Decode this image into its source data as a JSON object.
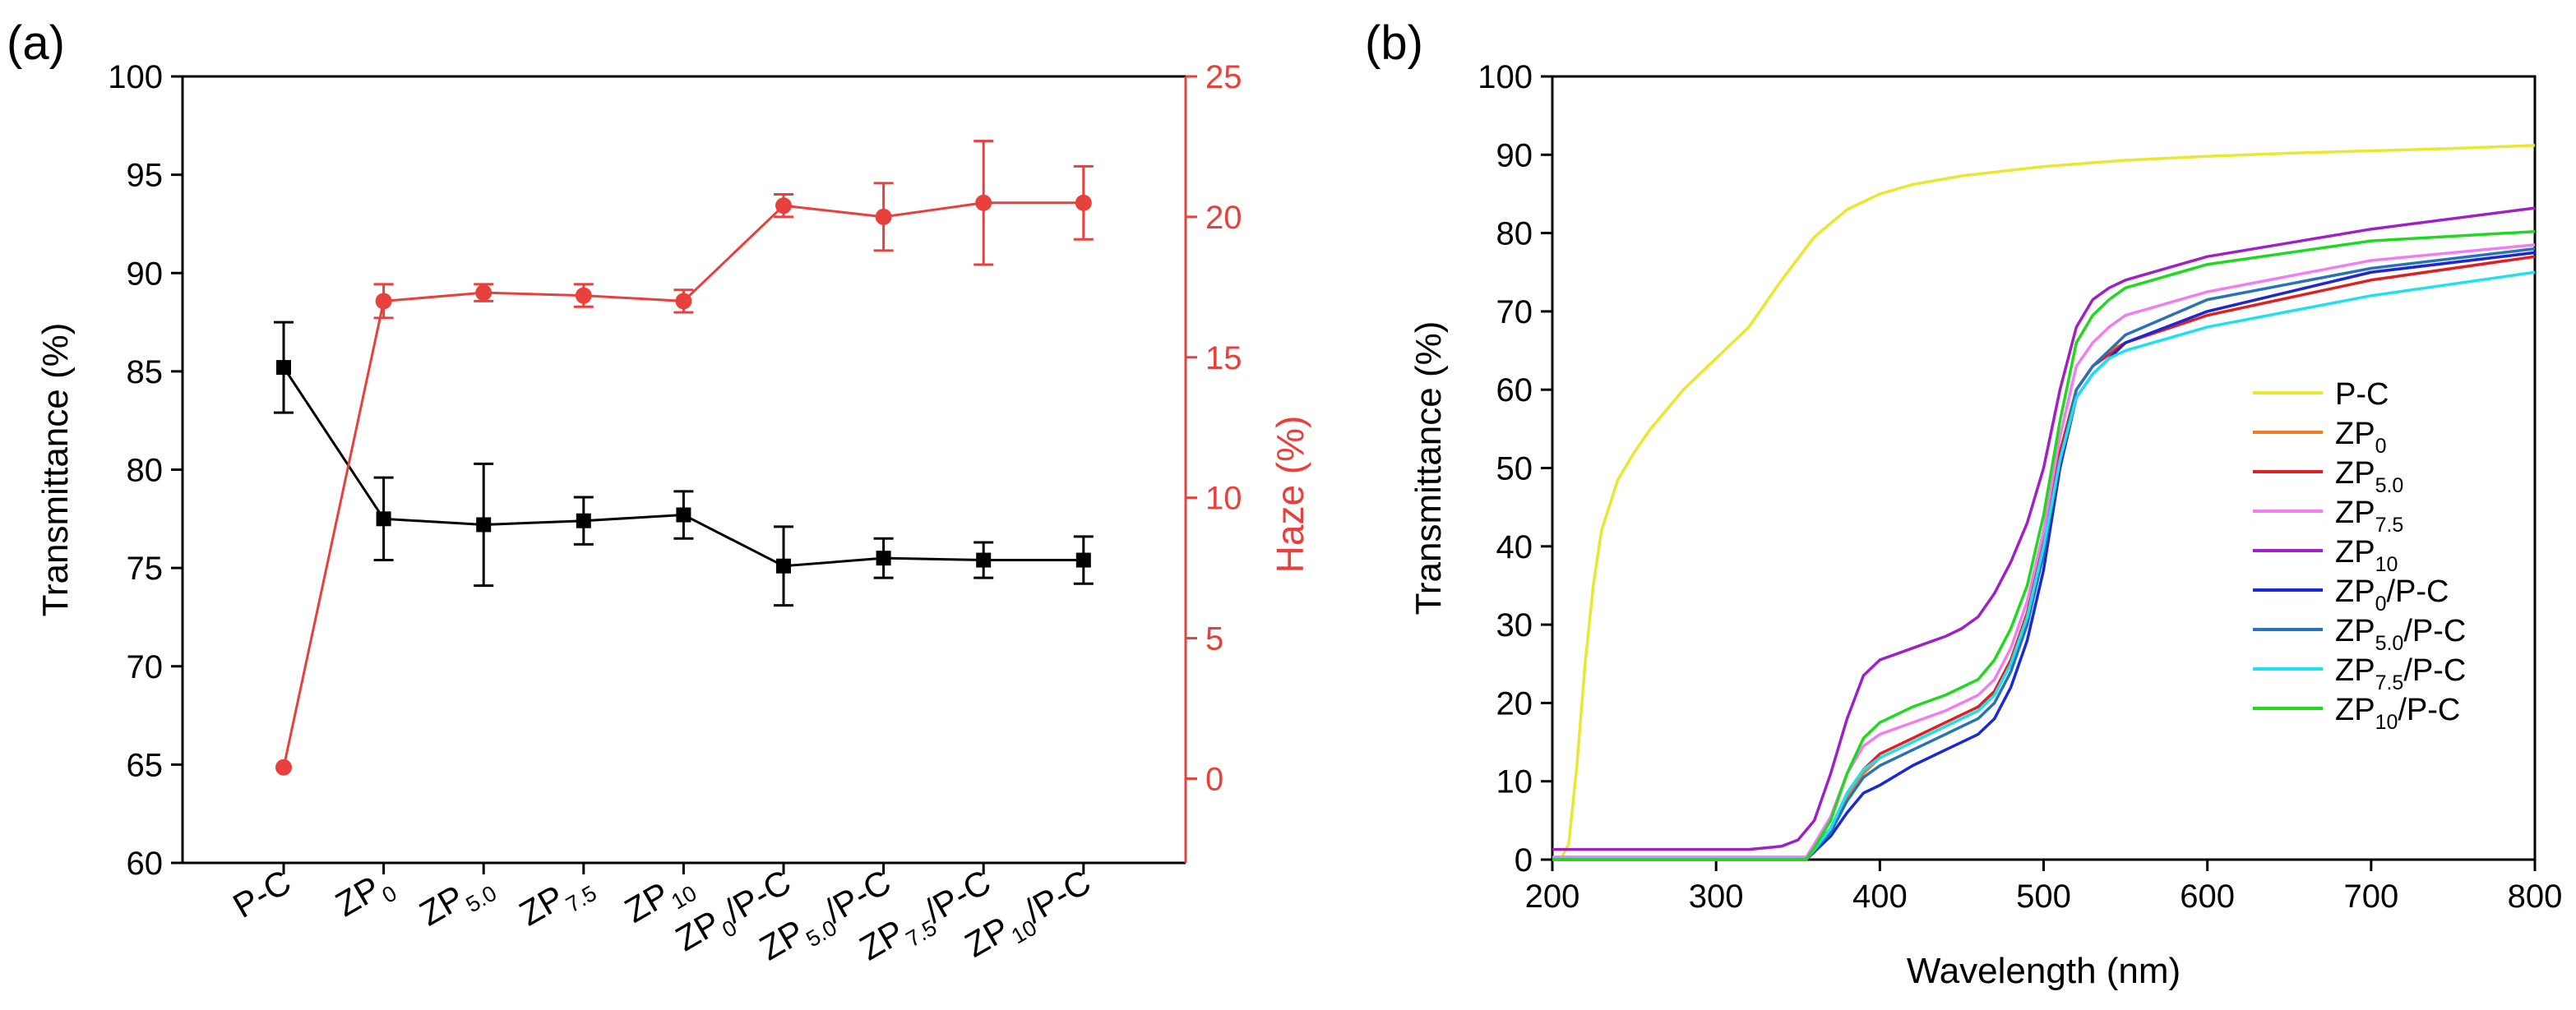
{
  "chart_data": [
    {
      "panel_label": "(a)",
      "type": "line",
      "categories": [
        {
          "base": "P-C",
          "sub": "",
          "suffix": ""
        },
        {
          "base": "ZP",
          "sub": "0",
          "suffix": ""
        },
        {
          "base": "ZP",
          "sub": "5.0",
          "suffix": ""
        },
        {
          "base": "ZP",
          "sub": "7.5",
          "suffix": ""
        },
        {
          "base": "ZP",
          "sub": "10",
          "suffix": ""
        },
        {
          "base": "ZP",
          "sub": "0",
          "suffix": "/P-C"
        },
        {
          "base": "ZP",
          "sub": "5.0",
          "suffix": "/P-C"
        },
        {
          "base": "ZP",
          "sub": "7.5",
          "suffix": "/P-C"
        },
        {
          "base": "ZP",
          "sub": "10",
          "suffix": "/P-C"
        }
      ],
      "ylabel": "Transmittance (%)",
      "ylim": [
        60,
        100
      ],
      "yticks": [
        60,
        65,
        70,
        75,
        80,
        85,
        90,
        95,
        100
      ],
      "y2label": "Haze (%)",
      "y2lim": [
        -3,
        25
      ],
      "y2ticks": [
        0,
        5,
        10,
        15,
        20,
        25
      ],
      "series": [
        {
          "name": "Transmittance",
          "axis": "left",
          "color": "#000000",
          "marker": "square",
          "values": [
            85.2,
            77.5,
            77.2,
            77.4,
            77.7,
            75.1,
            75.5,
            75.4,
            75.4
          ],
          "errors": [
            2.3,
            2.1,
            3.1,
            1.2,
            1.2,
            2.0,
            1.0,
            0.9,
            1.2
          ]
        },
        {
          "name": "Haze",
          "axis": "right",
          "color": "#e8403c",
          "marker": "circle",
          "values": [
            0.4,
            17.0,
            17.3,
            17.2,
            17.0,
            20.4,
            20.0,
            20.5,
            20.5
          ],
          "errors": [
            0,
            0.6,
            0.3,
            0.4,
            0.4,
            0.4,
            1.2,
            2.2,
            1.3
          ]
        }
      ]
    },
    {
      "panel_label": "(b)",
      "type": "line",
      "xlabel": "Wavelength (nm)",
      "ylabel": "Transmittance (%)",
      "xlim": [
        200,
        800
      ],
      "ylim": [
        0,
        100
      ],
      "xticks": [
        200,
        300,
        400,
        500,
        600,
        700,
        800
      ],
      "yticks": [
        0,
        10,
        20,
        30,
        40,
        50,
        60,
        70,
        80,
        90,
        100
      ],
      "legend_position": "bottom-right",
      "series": [
        {
          "label": {
            "base": "P-C",
            "sub": "",
            "suffix": ""
          },
          "color": "#e8e830",
          "x": [
            205,
            210,
            215,
            220,
            225,
            230,
            240,
            250,
            260,
            280,
            300,
            320,
            340,
            360,
            380,
            400,
            420,
            450,
            500,
            550,
            600,
            650,
            700,
            750,
            800
          ],
          "y": [
            0,
            2,
            12,
            25,
            35,
            42,
            48.5,
            52,
            55,
            60,
            64,
            68,
            74,
            79.5,
            83,
            85,
            86.2,
            87.3,
            88.5,
            89.3,
            89.8,
            90.2,
            90.5,
            90.8,
            91.2
          ]
        },
        {
          "label": {
            "base": "ZP",
            "sub": "0",
            "suffix": ""
          },
          "color": "#f07c2a",
          "x": [
            200,
            340,
            355,
            360,
            370,
            380,
            390,
            400,
            420,
            440,
            460,
            470,
            480,
            490,
            500,
            510,
            520,
            530,
            540,
            550,
            600,
            700,
            800
          ],
          "y": [
            0.3,
            0.3,
            0.3,
            1.5,
            4,
            8,
            11,
            13,
            15,
            17,
            19,
            21,
            25,
            31,
            40,
            52,
            60,
            63,
            65,
            66,
            70,
            75,
            77.5
          ]
        },
        {
          "label": {
            "base": "ZP",
            "sub": "5.0",
            "suffix": ""
          },
          "color": "#e02020",
          "x": [
            200,
            340,
            355,
            360,
            370,
            380,
            390,
            400,
            420,
            440,
            460,
            470,
            480,
            490,
            500,
            510,
            520,
            530,
            540,
            550,
            600,
            700,
            800
          ],
          "y": [
            0.3,
            0.3,
            0.3,
            1.5,
            4,
            8.5,
            11.5,
            13.5,
            15.5,
            17.5,
            19.5,
            21.5,
            25.5,
            31.5,
            40.5,
            52,
            60,
            63,
            64.5,
            66,
            69.5,
            74,
            77
          ]
        },
        {
          "label": {
            "base": "ZP",
            "sub": "7.5",
            "suffix": ""
          },
          "color": "#f07ef0",
          "x": [
            200,
            340,
            355,
            360,
            370,
            380,
            390,
            400,
            420,
            440,
            460,
            470,
            480,
            490,
            500,
            510,
            520,
            530,
            540,
            550,
            600,
            700,
            800
          ],
          "y": [
            0.3,
            0.3,
            0.3,
            2,
            5.5,
            11,
            14.5,
            16,
            17.5,
            19,
            21,
            23,
            27,
            33,
            42,
            54,
            63,
            66,
            68,
            69.5,
            72.5,
            76.5,
            78.5
          ]
        },
        {
          "label": {
            "base": "ZP",
            "sub": "10",
            "suffix": ""
          },
          "color": "#a020c8",
          "x": [
            200,
            320,
            340,
            350,
            360,
            370,
            380,
            390,
            400,
            420,
            440,
            450,
            460,
            470,
            480,
            490,
            500,
            510,
            520,
            530,
            540,
            550,
            600,
            700,
            800
          ],
          "y": [
            1.3,
            1.3,
            1.7,
            2.5,
            5,
            11,
            18,
            23.5,
            25.5,
            27,
            28.5,
            29.5,
            31,
            34,
            38,
            43,
            50,
            60,
            68,
            71.5,
            73,
            74,
            77,
            80.5,
            83.2
          ]
        },
        {
          "label": {
            "base": "ZP",
            "sub": "0",
            "suffix": "/P-C"
          },
          "color": "#1a28d8",
          "x": [
            200,
            340,
            355,
            360,
            370,
            380,
            390,
            400,
            420,
            440,
            460,
            470,
            480,
            490,
            500,
            510,
            520,
            530,
            540,
            550,
            600,
            700,
            800
          ],
          "y": [
            0,
            0,
            0,
            1,
            3,
            6,
            8.5,
            9.5,
            12,
            14,
            16,
            18,
            22,
            28,
            37,
            50,
            59,
            62,
            64,
            66,
            70,
            75,
            77.5
          ]
        },
        {
          "label": {
            "base": "ZP",
            "sub": "5.0",
            "suffix": "/P-C"
          },
          "color": "#2a72b8",
          "x": [
            200,
            340,
            355,
            360,
            370,
            380,
            390,
            400,
            420,
            440,
            460,
            470,
            480,
            490,
            500,
            510,
            520,
            530,
            540,
            550,
            600,
            700,
            800
          ],
          "y": [
            0,
            0,
            0,
            1.2,
            3.5,
            7.5,
            10.5,
            12,
            14,
            16,
            18,
            20,
            24,
            30,
            39,
            51,
            60,
            63,
            65,
            67,
            71.5,
            75.5,
            78
          ]
        },
        {
          "label": {
            "base": "ZP",
            "sub": "7.5",
            "suffix": "/P-C"
          },
          "color": "#20e0f0",
          "x": [
            200,
            340,
            355,
            360,
            370,
            380,
            390,
            400,
            420,
            440,
            460,
            470,
            480,
            490,
            500,
            510,
            520,
            530,
            540,
            550,
            600,
            700,
            800
          ],
          "y": [
            0,
            0,
            0,
            1.3,
            4,
            8.5,
            11.5,
            13,
            15,
            17,
            19,
            21,
            25,
            31,
            40,
            51,
            59,
            62,
            64,
            65,
            68,
            72,
            75
          ]
        },
        {
          "label": {
            "base": "ZP",
            "sub": "10",
            "suffix": "/P-C"
          },
          "color": "#20d820",
          "x": [
            200,
            340,
            355,
            360,
            370,
            380,
            390,
            400,
            420,
            440,
            460,
            470,
            480,
            490,
            500,
            510,
            520,
            530,
            540,
            550,
            600,
            700,
            800
          ],
          "y": [
            0,
            0,
            0,
            1.5,
            5,
            11,
            15.5,
            17.5,
            19.5,
            21,
            23,
            25.5,
            29.5,
            35,
            44,
            56,
            66,
            69.5,
            71.5,
            73,
            76,
            79,
            80.2
          ]
        }
      ]
    }
  ]
}
